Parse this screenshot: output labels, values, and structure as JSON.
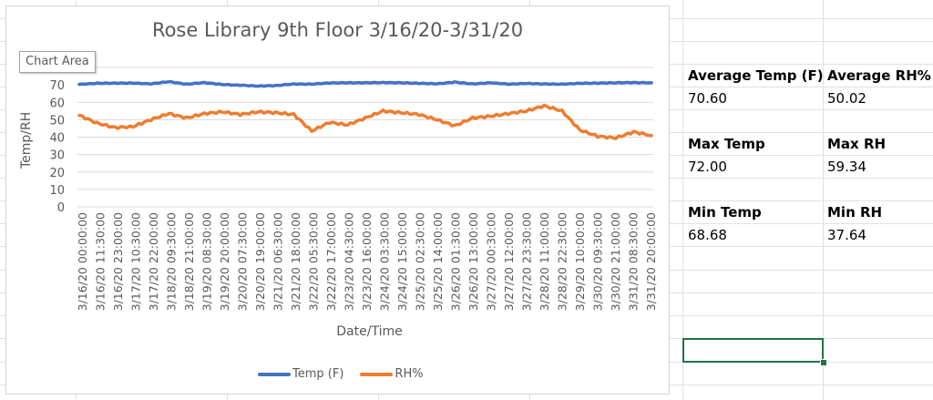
{
  "sheet": {
    "stats": [
      {
        "row": 0,
        "col": 0,
        "text": "Average Temp (F)",
        "bold": true
      },
      {
        "row": 0,
        "col": 1,
        "text": "Average RH%",
        "bold": true
      },
      {
        "row": 1,
        "col": 0,
        "text": "70.60",
        "bold": false
      },
      {
        "row": 1,
        "col": 1,
        "text": "50.02",
        "bold": false
      },
      {
        "row": 3,
        "col": 0,
        "text": "Max Temp",
        "bold": true
      },
      {
        "row": 3,
        "col": 1,
        "text": "Max RH",
        "bold": true
      },
      {
        "row": 4,
        "col": 0,
        "text": "72.00",
        "bold": false
      },
      {
        "row": 4,
        "col": 1,
        "text": "59.34",
        "bold": false
      },
      {
        "row": 6,
        "col": 0,
        "text": "Min Temp",
        "bold": true
      },
      {
        "row": 6,
        "col": 1,
        "text": "Min RH",
        "bold": true
      },
      {
        "row": 7,
        "col": 0,
        "text": "68.68",
        "bold": false
      },
      {
        "row": 7,
        "col": 1,
        "text": "37.64",
        "bold": false
      }
    ],
    "labels": {
      "avg_temp_label": "Average Temp (F)",
      "avg_rh_label": "Average RH%",
      "avg_temp_value": "70.60",
      "avg_rh_value": "50.02",
      "max_temp_label": "Max Temp",
      "max_rh_label": "Max RH",
      "max_temp_value": "72.00",
      "max_rh_value": "59.34",
      "min_temp_label": "Min Temp",
      "min_rh_label": "Min RH",
      "min_temp_value": "68.68",
      "min_rh_value": "37.64"
    },
    "selection_color": "#217346"
  },
  "chart": {
    "tooltip": "Chart Area",
    "colors": {
      "temp": "#4472C4",
      "rh": "#ED7D31",
      "grid": "#d9d9d9",
      "text": "#595959"
    }
  },
  "chart_data": {
    "type": "line",
    "title": "Rose Library 9th Floor 3/16/20-3/31/20",
    "xlabel": "Date/Time",
    "ylabel": "Temp/RH",
    "ylim": [
      0,
      80
    ],
    "yticks": [
      0,
      10,
      20,
      30,
      40,
      50,
      60,
      70,
      80
    ],
    "grid": true,
    "legend_position": "bottom",
    "categories": [
      "3/16/20 00:00:00",
      "3/16/20 11:30:00",
      "3/16/20 23:00:00",
      "3/17/20 10:30:00",
      "3/17/20 22:00:00",
      "3/18/20 09:30:00",
      "3/18/20 21:00:00",
      "3/19/20 08:30:00",
      "3/19/20 20:00:00",
      "3/20/20 07:30:00",
      "3/20/20 19:00:00",
      "3/21/20 06:30:00",
      "3/21/20 18:00:00",
      "3/22/20 05:30:00",
      "3/22/20 17:00:00",
      "3/23/20 04:30:00",
      "3/23/20 16:00:00",
      "3/24/20 03:30:00",
      "3/24/20 15:00:00",
      "3/25/20 02:30:00",
      "3/25/20 14:00:00",
      "3/26/20 01:30:00",
      "3/26/20 13:00:00",
      "3/27/20 00:30:00",
      "3/27/20 12:00:00",
      "3/27/20 23:30:00",
      "3/28/20 11:00:00",
      "3/28/20 22:30:00",
      "3/29/20 10:00:00",
      "3/30/20 09:30:00",
      "3/30/20 21:00:00",
      "3/31/20 08:30:00",
      "3/31/20 20:00:00"
    ],
    "series": [
      {
        "name": "Temp (F)",
        "color": "#4472C4",
        "values": [
          70.3,
          70.9,
          71.0,
          71.0,
          70.6,
          71.8,
          70.4,
          71.3,
          70.2,
          69.8,
          69.3,
          69.6,
          70.5,
          70.4,
          71.1,
          71.2,
          71.2,
          71.3,
          71.2,
          70.9,
          70.6,
          71.6,
          70.5,
          71.2,
          70.4,
          70.8,
          70.5,
          70.4,
          70.9,
          71.0,
          71.2,
          71.3,
          71.2
        ]
      },
      {
        "name": "RH%",
        "color": "#ED7D31",
        "values": [
          52.5,
          48.0,
          45.5,
          46.0,
          50.0,
          53.5,
          51.0,
          53.5,
          54.5,
          53.0,
          54.5,
          54.0,
          53.0,
          43.5,
          48.5,
          47.0,
          51.0,
          55.0,
          54.0,
          53.0,
          50.0,
          46.5,
          51.0,
          52.0,
          53.5,
          55.0,
          58.0,
          55.0,
          44.0,
          40.5,
          39.5,
          43.0,
          41.0
        ]
      }
    ]
  }
}
